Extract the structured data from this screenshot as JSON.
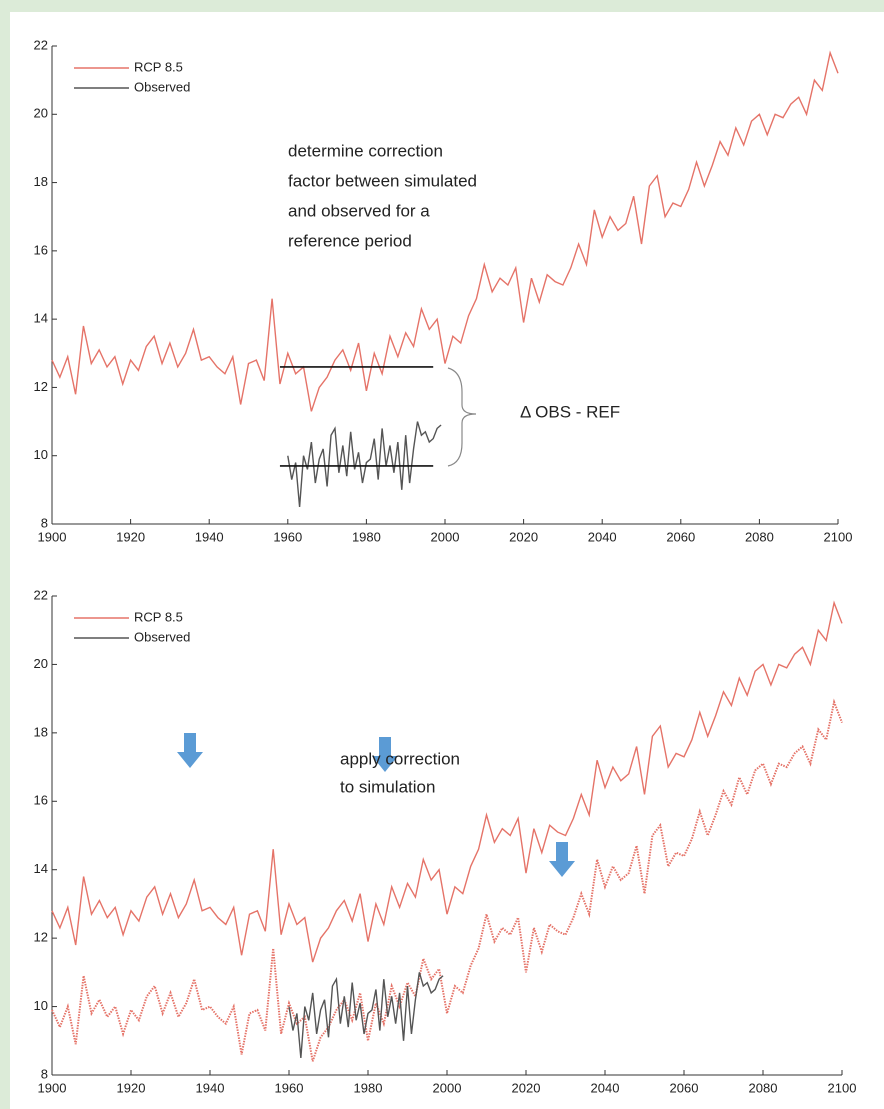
{
  "chart_data": [
    {
      "type": "line",
      "xlim": [
        1900,
        2100
      ],
      "ylim": [
        8,
        22
      ],
      "xticks": [
        1900,
        1920,
        1940,
        1960,
        1980,
        2000,
        2020,
        2040,
        2060,
        2080,
        2100
      ],
      "yticks": [
        8,
        10,
        12,
        14,
        16,
        18,
        20,
        22
      ],
      "legend": "upper left",
      "series": [
        {
          "name": "RCP 8.5",
          "color": "#e57368",
          "x": [
            1900,
            1902,
            1904,
            1906,
            1908,
            1910,
            1912,
            1914,
            1916,
            1918,
            1920,
            1922,
            1924,
            1926,
            1928,
            1930,
            1932,
            1934,
            1936,
            1938,
            1940,
            1942,
            1944,
            1946,
            1948,
            1950,
            1952,
            1954,
            1956,
            1958,
            1960,
            1962,
            1964,
            1966,
            1968,
            1970,
            1972,
            1974,
            1976,
            1978,
            1980,
            1982,
            1984,
            1986,
            1988,
            1990,
            1992,
            1994,
            1996,
            1998,
            2000,
            2002,
            2004,
            2006,
            2008,
            2010,
            2012,
            2014,
            2016,
            2018,
            2020,
            2022,
            2024,
            2026,
            2028,
            2030,
            2032,
            2034,
            2036,
            2038,
            2040,
            2042,
            2044,
            2046,
            2048,
            2050,
            2052,
            2054,
            2056,
            2058,
            2060,
            2062,
            2064,
            2066,
            2068,
            2070,
            2072,
            2074,
            2076,
            2078,
            2080,
            2082,
            2084,
            2086,
            2088,
            2090,
            2092,
            2094,
            2096,
            2098,
            2100
          ],
          "values": [
            12.8,
            12.3,
            12.9,
            11.8,
            13.8,
            12.7,
            13.1,
            12.6,
            12.9,
            12.1,
            12.8,
            12.5,
            13.2,
            13.5,
            12.7,
            13.3,
            12.6,
            13.0,
            13.7,
            12.8,
            12.9,
            12.6,
            12.4,
            12.9,
            11.5,
            12.7,
            12.8,
            12.2,
            14.6,
            12.1,
            13.0,
            12.4,
            12.6,
            11.3,
            12.0,
            12.3,
            12.8,
            13.1,
            12.5,
            13.3,
            11.9,
            13.0,
            12.4,
            13.5,
            12.9,
            13.6,
            13.2,
            14.3,
            13.7,
            14.0,
            12.7,
            13.5,
            13.3,
            14.1,
            14.6,
            15.6,
            14.8,
            15.2,
            15.0,
            15.5,
            13.9,
            15.2,
            14.5,
            15.3,
            15.1,
            15.0,
            15.5,
            16.2,
            15.6,
            17.2,
            16.4,
            17.0,
            16.6,
            16.8,
            17.6,
            16.2,
            17.9,
            18.2,
            17.0,
            17.4,
            17.3,
            17.8,
            18.6,
            17.9,
            18.5,
            19.2,
            18.8,
            19.6,
            19.1,
            19.8,
            20.0,
            19.4,
            20.0,
            19.9,
            20.3,
            20.5,
            20.0,
            21.0,
            20.7,
            21.8,
            21.2
          ]
        },
        {
          "name": "Observed",
          "color": "#555555",
          "x": [
            1960,
            1961,
            1962,
            1963,
            1964,
            1965,
            1966,
            1967,
            1968,
            1969,
            1970,
            1971,
            1972,
            1973,
            1974,
            1975,
            1976,
            1977,
            1978,
            1979,
            1980,
            1981,
            1982,
            1983,
            1984,
            1985,
            1986,
            1987,
            1988,
            1989,
            1990,
            1991,
            1992,
            1993,
            1994,
            1995,
            1996,
            1997,
            1998,
            1999
          ],
          "values": [
            10.0,
            9.3,
            9.8,
            8.5,
            10.0,
            9.6,
            10.4,
            9.2,
            9.9,
            10.2,
            9.1,
            10.6,
            10.8,
            9.5,
            10.3,
            9.4,
            10.7,
            9.6,
            10.1,
            9.2,
            9.8,
            9.9,
            10.5,
            9.3,
            10.8,
            9.7,
            10.3,
            9.5,
            10.4,
            9.0,
            10.6,
            9.2,
            10.2,
            11.0,
            10.6,
            10.7,
            10.4,
            10.5,
            10.8,
            10.9
          ]
        }
      ],
      "reference_lines": [
        {
          "y": 12.6,
          "x": [
            1958,
            1997
          ]
        },
        {
          "y": 9.7,
          "x": [
            1958,
            1997
          ]
        }
      ],
      "annotations": [
        "determine correction",
        "factor between simulated",
        "and observed for a",
        "reference period"
      ],
      "brace_label": "Δ OBS - REF"
    },
    {
      "type": "line",
      "xlim": [
        1900,
        2100
      ],
      "ylim": [
        8,
        22
      ],
      "xticks": [
        1900,
        1920,
        1940,
        1960,
        1980,
        2000,
        2020,
        2040,
        2060,
        2080,
        2100
      ],
      "yticks": [
        8,
        10,
        12,
        14,
        16,
        18,
        20,
        22
      ],
      "legend": "upper left",
      "series": [
        {
          "name": "RCP 8.5",
          "color": "#e57368",
          "x": [
            1900,
            1902,
            1904,
            1906,
            1908,
            1910,
            1912,
            1914,
            1916,
            1918,
            1920,
            1922,
            1924,
            1926,
            1928,
            1930,
            1932,
            1934,
            1936,
            1938,
            1940,
            1942,
            1944,
            1946,
            1948,
            1950,
            1952,
            1954,
            1956,
            1958,
            1960,
            1962,
            1964,
            1966,
            1968,
            1970,
            1972,
            1974,
            1976,
            1978,
            1980,
            1982,
            1984,
            1986,
            1988,
            1990,
            1992,
            1994,
            1996,
            1998,
            2000,
            2002,
            2004,
            2006,
            2008,
            2010,
            2012,
            2014,
            2016,
            2018,
            2020,
            2022,
            2024,
            2026,
            2028,
            2030,
            2032,
            2034,
            2036,
            2038,
            2040,
            2042,
            2044,
            2046,
            2048,
            2050,
            2052,
            2054,
            2056,
            2058,
            2060,
            2062,
            2064,
            2066,
            2068,
            2070,
            2072,
            2074,
            2076,
            2078,
            2080,
            2082,
            2084,
            2086,
            2088,
            2090,
            2092,
            2094,
            2096,
            2098,
            2100
          ],
          "values": [
            12.8,
            12.3,
            12.9,
            11.8,
            13.8,
            12.7,
            13.1,
            12.6,
            12.9,
            12.1,
            12.8,
            12.5,
            13.2,
            13.5,
            12.7,
            13.3,
            12.6,
            13.0,
            13.7,
            12.8,
            12.9,
            12.6,
            12.4,
            12.9,
            11.5,
            12.7,
            12.8,
            12.2,
            14.6,
            12.1,
            13.0,
            12.4,
            12.6,
            11.3,
            12.0,
            12.3,
            12.8,
            13.1,
            12.5,
            13.3,
            11.9,
            13.0,
            12.4,
            13.5,
            12.9,
            13.6,
            13.2,
            14.3,
            13.7,
            14.0,
            12.7,
            13.5,
            13.3,
            14.1,
            14.6,
            15.6,
            14.8,
            15.2,
            15.0,
            15.5,
            13.9,
            15.2,
            14.5,
            15.3,
            15.1,
            15.0,
            15.5,
            16.2,
            15.6,
            17.2,
            16.4,
            17.0,
            16.6,
            16.8,
            17.6,
            16.2,
            17.9,
            18.2,
            17.0,
            17.4,
            17.3,
            17.8,
            18.6,
            17.9,
            18.5,
            19.2,
            18.8,
            19.6,
            19.1,
            19.8,
            20.0,
            19.4,
            20.0,
            19.9,
            20.3,
            20.5,
            20.0,
            21.0,
            20.7,
            21.8,
            21.2
          ]
        },
        {
          "color": "#e57368",
          "dotted": true,
          "x": [
            1900,
            1902,
            1904,
            1906,
            1908,
            1910,
            1912,
            1914,
            1916,
            1918,
            1920,
            1922,
            1924,
            1926,
            1928,
            1930,
            1932,
            1934,
            1936,
            1938,
            1940,
            1942,
            1944,
            1946,
            1948,
            1950,
            1952,
            1954,
            1956,
            1958,
            1960,
            1962,
            1964,
            1966,
            1968,
            1970,
            1972,
            1974,
            1976,
            1978,
            1980,
            1982,
            1984,
            1986,
            1988,
            1990,
            1992,
            1994,
            1996,
            1998,
            2000,
            2002,
            2004,
            2006,
            2008,
            2010,
            2012,
            2014,
            2016,
            2018,
            2020,
            2022,
            2024,
            2026,
            2028,
            2030,
            2032,
            2034,
            2036,
            2038,
            2040,
            2042,
            2044,
            2046,
            2048,
            2050,
            2052,
            2054,
            2056,
            2058,
            2060,
            2062,
            2064,
            2066,
            2068,
            2070,
            2072,
            2074,
            2076,
            2078,
            2080,
            2082,
            2084,
            2086,
            2088,
            2090,
            2092,
            2094,
            2096,
            2098,
            2100
          ],
          "values": [
            9.9,
            9.4,
            10.0,
            8.9,
            10.9,
            9.8,
            10.2,
            9.7,
            10.0,
            9.2,
            9.9,
            9.6,
            10.3,
            10.6,
            9.8,
            10.4,
            9.7,
            10.1,
            10.8,
            9.9,
            10.0,
            9.7,
            9.5,
            10.0,
            8.6,
            9.8,
            9.9,
            9.3,
            11.7,
            9.2,
            10.1,
            9.5,
            9.7,
            8.4,
            9.1,
            9.4,
            9.9,
            10.2,
            9.6,
            10.4,
            9.0,
            10.1,
            9.5,
            10.6,
            10.0,
            10.7,
            10.3,
            11.4,
            10.8,
            11.1,
            9.8,
            10.6,
            10.4,
            11.2,
            11.7,
            12.7,
            11.9,
            12.3,
            12.1,
            12.6,
            11.0,
            12.3,
            11.6,
            12.4,
            12.2,
            12.1,
            12.6,
            13.3,
            12.7,
            14.3,
            13.5,
            14.1,
            13.7,
            13.9,
            14.7,
            13.3,
            15.0,
            15.3,
            14.1,
            14.5,
            14.4,
            14.9,
            15.7,
            15.0,
            15.6,
            16.3,
            15.9,
            16.7,
            16.2,
            16.9,
            17.1,
            16.5,
            17.1,
            17.0,
            17.4,
            17.6,
            17.1,
            18.1,
            17.8,
            18.9,
            18.3
          ]
        },
        {
          "name": "Observed",
          "color": "#555555",
          "x": [
            1960,
            1961,
            1962,
            1963,
            1964,
            1965,
            1966,
            1967,
            1968,
            1969,
            1970,
            1971,
            1972,
            1973,
            1974,
            1975,
            1976,
            1977,
            1978,
            1979,
            1980,
            1981,
            1982,
            1983,
            1984,
            1985,
            1986,
            1987,
            1988,
            1989,
            1990,
            1991,
            1992,
            1993,
            1994,
            1995,
            1996,
            1997,
            1998,
            1999
          ],
          "values": [
            10.0,
            9.3,
            9.8,
            8.5,
            10.0,
            9.6,
            10.4,
            9.2,
            9.9,
            10.2,
            9.1,
            10.6,
            10.8,
            9.5,
            10.3,
            9.4,
            10.7,
            9.6,
            10.1,
            9.2,
            9.8,
            9.9,
            10.5,
            9.3,
            10.8,
            9.7,
            10.3,
            9.5,
            10.4,
            9.0,
            10.6,
            9.2,
            10.2,
            11.0,
            10.6,
            10.7,
            10.4,
            10.5,
            10.8,
            10.9
          ]
        }
      ],
      "annotations": [
        "apply correction",
        "to simulation"
      ]
    }
  ]
}
